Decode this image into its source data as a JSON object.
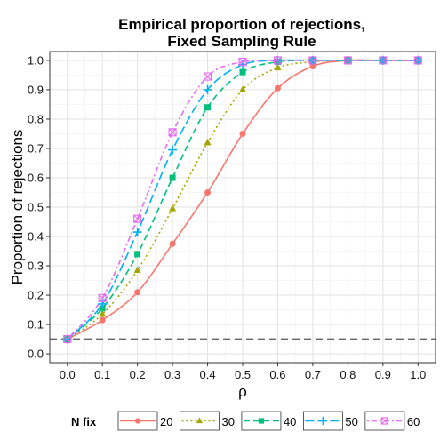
{
  "chart_data": {
    "type": "line",
    "title_line1": "Empirical proportion of rejections,",
    "title_line2": "Fixed Sampling Rule",
    "xlabel": "ρ",
    "ylabel": "Proportion of rejections",
    "xlim": [
      -0.05,
      1.05
    ],
    "ylim": [
      -0.03,
      1.03
    ],
    "x_ticks": [
      "0.0",
      "0.1",
      "0.2",
      "0.3",
      "0.4",
      "0.5",
      "0.6",
      "0.7",
      "0.8",
      "0.9",
      "1.0"
    ],
    "y_ticks": [
      "0.0",
      "0.1",
      "0.2",
      "0.3",
      "0.4",
      "0.5",
      "0.6",
      "0.7",
      "0.8",
      "0.9",
      "1.0"
    ],
    "reference_line": {
      "y": 0.05,
      "color": "#666666"
    },
    "x": [
      0.0,
      0.1,
      0.2,
      0.3,
      0.4,
      0.5,
      0.6,
      0.7,
      0.8,
      0.9,
      1.0
    ],
    "legend_title": "N fix",
    "series": [
      {
        "name": "20",
        "color": "#F8766D",
        "dash": "solid",
        "marker": "circle",
        "values": [
          0.05,
          0.115,
          0.21,
          0.375,
          0.55,
          0.75,
          0.905,
          0.98,
          1.0,
          1.0,
          1.0
        ]
      },
      {
        "name": "30",
        "color": "#A3A500",
        "dash": "dotted",
        "marker": "triangle",
        "values": [
          0.05,
          0.135,
          0.285,
          0.495,
          0.72,
          0.9,
          0.975,
          0.995,
          1.0,
          1.0,
          1.0
        ]
      },
      {
        "name": "40",
        "color": "#00BF7D",
        "dash": "dashed",
        "marker": "square",
        "values": [
          0.05,
          0.155,
          0.34,
          0.6,
          0.84,
          0.96,
          0.995,
          1.0,
          1.0,
          1.0,
          1.0
        ]
      },
      {
        "name": "50",
        "color": "#00B0F6",
        "dash": "longdash",
        "marker": "plus",
        "values": [
          0.05,
          0.17,
          0.415,
          0.695,
          0.9,
          0.985,
          1.0,
          1.0,
          1.0,
          1.0,
          1.0
        ]
      },
      {
        "name": "60",
        "color": "#E76BF3",
        "dash": "dotdash",
        "marker": "boxcross",
        "values": [
          0.05,
          0.19,
          0.46,
          0.755,
          0.945,
          0.995,
          1.0,
          1.0,
          1.0,
          1.0,
          1.0
        ]
      }
    ]
  }
}
